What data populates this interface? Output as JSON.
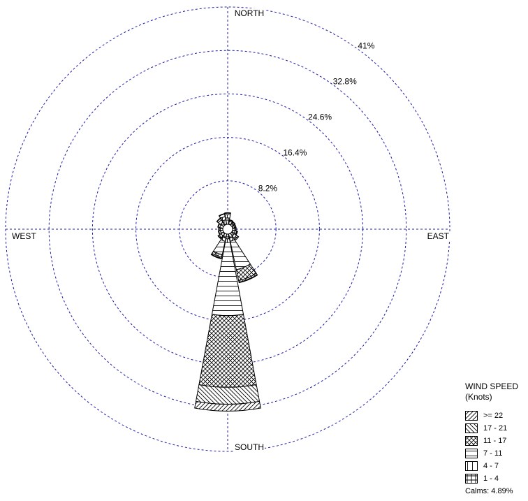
{
  "chart_data": {
    "type": "windrose",
    "directions": [
      "N",
      "NNE",
      "NE",
      "ENE",
      "E",
      "ESE",
      "SE",
      "SSE",
      "S",
      "SSW",
      "SW",
      "WSW",
      "W",
      "WNW",
      "NW",
      "NNW"
    ],
    "direction_labels": {
      "north": "NORTH",
      "east": "EAST",
      "south": "SOUTH",
      "west": "WEST"
    },
    "radial_ticks": [
      "8.2%",
      "16.4%",
      "24.6%",
      "32.8%",
      "41%"
    ],
    "radial_max": 41,
    "legend": {
      "title": "WIND SPEED",
      "units": "(Knots)",
      "bins": [
        ">= 22",
        "17 - 21",
        "11 - 17",
        "7 - 11",
        "4 - 7",
        "1 - 4"
      ]
    },
    "calms": "Calms: 4.89%",
    "series": [
      {
        "name": "1 - 4",
        "values": [
          1.2,
          0.6,
          0.5,
          0.4,
          0.4,
          0.5,
          0.6,
          0.8,
          0.9,
          0.8,
          0.6,
          0.5,
          0.5,
          0.6,
          0.7,
          0.9
        ]
      },
      {
        "name": "4 - 7",
        "values": [
          0.6,
          0.2,
          0.2,
          0.2,
          0.2,
          0.3,
          0.5,
          0.6,
          0.7,
          0.6,
          0.4,
          0.3,
          0.2,
          0.3,
          0.5,
          0.6
        ]
      },
      {
        "name": "7 - 11",
        "values": [
          0.3,
          0.1,
          0.1,
          0.1,
          0.1,
          0.1,
          0.3,
          5.5,
          13.8,
          2.6,
          0.2,
          0.1,
          0.1,
          0.1,
          0.3,
          0.5
        ]
      },
      {
        "name": "11 - 17",
        "values": [
          0.1,
          0.0,
          0.0,
          0.0,
          0.0,
          0.1,
          0.2,
          2.1,
          13.5,
          0.5,
          0.1,
          0.0,
          0.0,
          0.0,
          0.1,
          0.1
        ]
      },
      {
        "name": "17 - 21",
        "values": [
          0.0,
          0.0,
          0.0,
          0.0,
          0.0,
          0.0,
          0.0,
          0.3,
          3.2,
          0.2,
          0.0,
          0.0,
          0.0,
          0.0,
          0.0,
          0.0
        ]
      },
      {
        "name": ">= 22",
        "values": [
          0.0,
          0.0,
          0.0,
          0.0,
          0.0,
          0.0,
          0.0,
          0.1,
          1.3,
          0.1,
          0.0,
          0.0,
          0.0,
          0.0,
          0.0,
          0.0
        ]
      }
    ],
    "grid": true,
    "legend_position": "bottom-right"
  }
}
